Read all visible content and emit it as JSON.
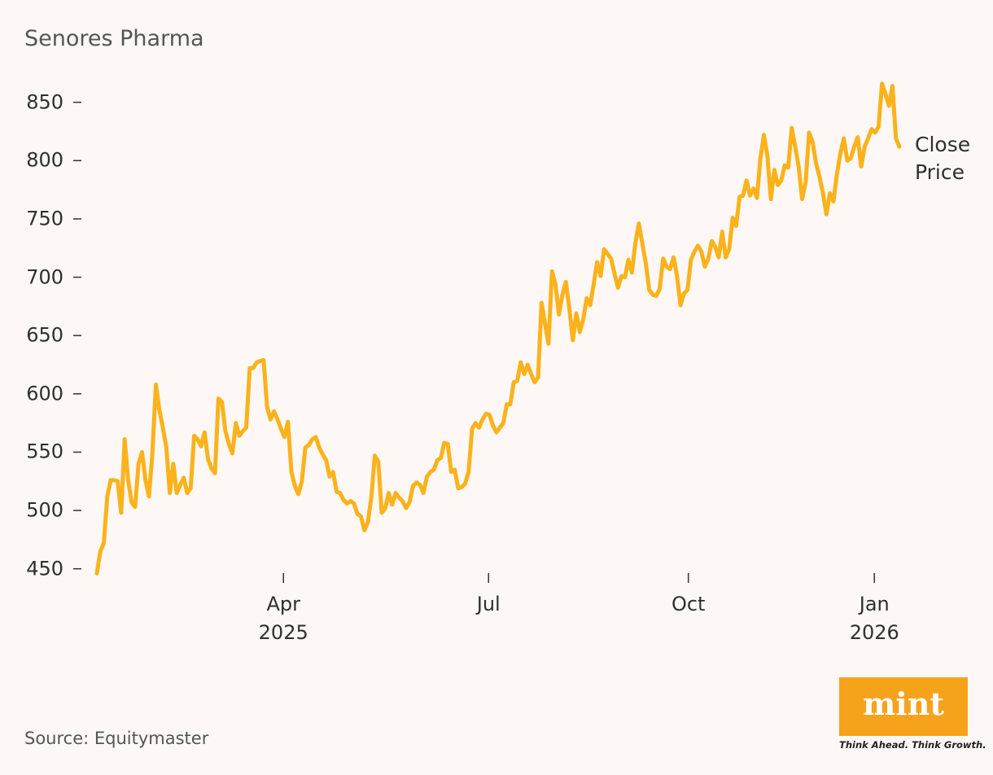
{
  "chart_data": {
    "type": "line",
    "title": "Senores Pharma",
    "source": "Source: Equitymaster",
    "logo": {
      "name": "mint",
      "tagline": "Think Ahead. Think Growth."
    },
    "ylim": [
      440,
      870
    ],
    "yticks": [
      450,
      500,
      550,
      600,
      650,
      700,
      750,
      800,
      850
    ],
    "xlim": [
      0,
      231
    ],
    "xticks": [
      {
        "value": 53.7,
        "label": "Apr\n2025"
      },
      {
        "value": 112.75,
        "label": "Jul"
      },
      {
        "value": 170.25,
        "label": "Oct"
      },
      {
        "value": 223.8,
        "label": "Jan\n2026"
      }
    ],
    "grid": false,
    "series": [
      {
        "name": "Close Price",
        "color": "#fbb21b",
        "values": [
          446,
          465,
          472,
          512,
          526,
          526,
          525,
          498,
          561,
          526,
          507,
          503,
          540,
          550,
          526,
          512,
          550,
          608,
          586,
          571,
          554,
          515,
          540,
          515,
          522,
          528,
          515,
          519,
          564,
          561,
          555,
          567,
          544,
          536,
          532,
          596,
          593,
          568,
          557,
          549,
          575,
          564,
          568,
          571,
          622,
          622,
          627,
          628,
          629,
          589,
          578,
          585,
          578,
          570,
          563,
          576,
          533,
          521,
          514,
          525,
          554,
          556,
          561,
          563,
          554,
          548,
          543,
          529,
          533,
          516,
          515,
          509,
          506,
          508,
          506,
          497,
          495,
          483,
          490,
          511,
          547,
          542,
          498,
          502,
          515,
          505,
          515,
          511,
          508,
          502,
          507,
          521,
          524,
          522,
          515,
          529,
          533,
          535,
          543,
          545,
          558,
          557,
          533,
          535,
          519,
          520,
          523,
          533,
          570,
          575,
          571,
          578,
          583,
          582,
          573,
          567,
          571,
          575,
          591,
          591,
          610,
          611,
          627,
          617,
          625,
          617,
          610,
          614,
          678,
          660,
          643,
          705,
          694,
          668,
          685,
          696,
          673,
          646,
          669,
          653,
          664,
          682,
          676,
          694,
          713,
          701,
          724,
          720,
          716,
          703,
          691,
          701,
          700,
          715,
          704,
          729,
          746,
          729,
          712,
          689,
          685,
          684,
          690,
          716,
          709,
          707,
          717,
          701,
          676,
          686,
          689,
          715,
          722,
          727,
          722,
          709,
          716,
          731,
          726,
          717,
          739,
          717,
          724,
          751,
          744,
          769,
          770,
          783,
          770,
          776,
          768,
          802,
          822,
          804,
          767,
          792,
          779,
          783,
          796,
          794,
          828,
          812,
          795,
          767,
          781,
          824,
          816,
          798,
          786,
          772,
          754,
          772,
          765,
          788,
          806,
          819,
          800,
          802,
          812,
          820,
          795,
          812,
          819,
          827,
          824,
          829,
          866,
          857,
          847,
          864,
          819,
          812
        ]
      }
    ]
  }
}
